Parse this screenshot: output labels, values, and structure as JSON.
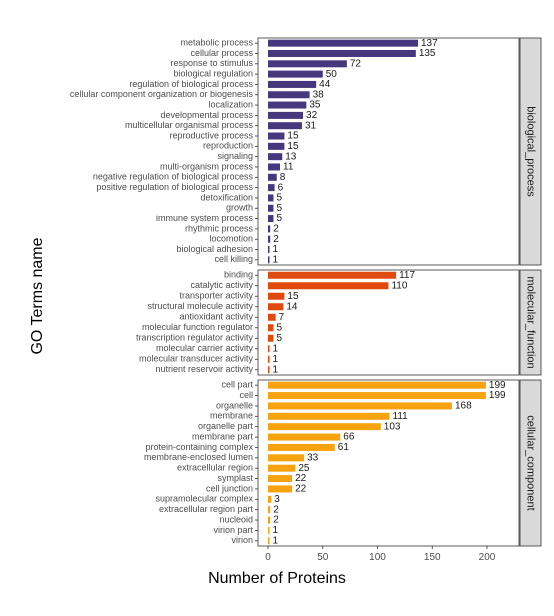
{
  "chart_data": {
    "type": "bar",
    "orientation": "horizontal",
    "xlabel": "Number of Proteins",
    "ylabel": "GO Terms name",
    "xlim": [
      0,
      230
    ],
    "xticks": [
      0,
      50,
      100,
      150,
      200
    ],
    "grid": false,
    "legend": "none",
    "facets": [
      {
        "name": "biological_process",
        "color": "#46387d",
        "categories": [
          "metabolic process",
          "cellular process",
          "response to stimulus",
          "biological regulation",
          "regulation of biological process",
          "cellular component organization or biogenesis",
          "localization",
          "developmental process",
          "multicellular organismal process",
          "reproductive process",
          "reproduction",
          "signaling",
          "multi-organism process",
          "negative regulation of biological process",
          "positive regulation of biological process",
          "detoxification",
          "growth",
          "immune system process",
          "rhythmic process",
          "locomotion",
          "biological adhesion",
          "cell killing"
        ],
        "values": [
          137,
          135,
          72,
          50,
          44,
          38,
          35,
          32,
          31,
          15,
          15,
          13,
          11,
          8,
          6,
          5,
          5,
          5,
          2,
          2,
          1,
          1
        ]
      },
      {
        "name": "molecular_function",
        "color": "#e04a0f",
        "categories": [
          "binding",
          "catalytic activity",
          "transporter activity",
          "structural molecule activity",
          "antioxidant activity",
          "molecular function regulator",
          "transcription regulator activity",
          "molecular carrier activity",
          "molecular transducer activity",
          "nutrient reservoir activity"
        ],
        "values": [
          117,
          110,
          15,
          14,
          7,
          5,
          5,
          1,
          1,
          1
        ]
      },
      {
        "name": "cellular_component",
        "color": "#f7a30f",
        "categories": [
          "cell part",
          "cell",
          "organelle",
          "membrane",
          "organelle part",
          "membrane part",
          "protein-containing complex",
          "membrane-enclosed lumen",
          "extracellular region",
          "symplast",
          "cell junction",
          "supramolecular complex",
          "extracellular region part",
          "nucleoid",
          "virion part",
          "virion"
        ],
        "values": [
          199,
          199,
          168,
          111,
          103,
          66,
          61,
          33,
          25,
          22,
          22,
          3,
          2,
          2,
          1,
          1
        ]
      }
    ]
  }
}
